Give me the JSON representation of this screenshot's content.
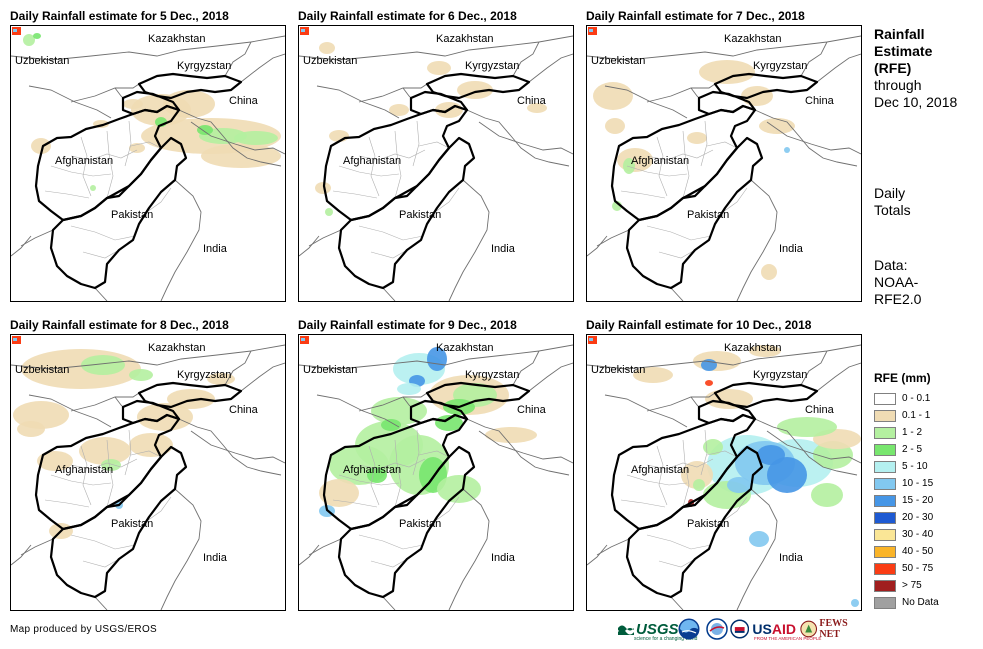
{
  "panels": [
    {
      "title": "Daily Rainfall estimate for 5 Dec., 2018"
    },
    {
      "title": "Daily Rainfall estimate for 6 Dec., 2018"
    },
    {
      "title": "Daily Rainfall estimate for 7 Dec., 2018"
    },
    {
      "title": "Daily Rainfall estimate for 8 Dec., 2018"
    },
    {
      "title": "Daily Rainfall estimate for 9 Dec., 2018"
    },
    {
      "title": "Daily Rainfall estimate for 10 Dec., 2018"
    }
  ],
  "map_labels": {
    "kazakhstan": "Kazakhstan",
    "uzbekistan": "Uzbekistan",
    "kyrgyzstan": "Kyrgyzstan",
    "china": "China",
    "afghanistan": "Afghanistan",
    "pakistan": "Pakistan",
    "india": "India"
  },
  "sidebar": {
    "title_bold": [
      "Rainfall",
      "Estimate",
      "(RFE)"
    ],
    "title_rest": [
      "through",
      "Dec 10, 2018"
    ],
    "daily": [
      "Daily",
      "Totals"
    ],
    "data": [
      "Data:",
      "NOAA-",
      "RFE2.0"
    ]
  },
  "legend": {
    "title": "RFE (mm)",
    "items": [
      {
        "label": "0 - 0.1",
        "color": "#ffffff"
      },
      {
        "label": "0.1 - 1",
        "color": "#f0dcb4"
      },
      {
        "label": "1 - 2",
        "color": "#b4f0a0"
      },
      {
        "label": "2 - 5",
        "color": "#78e66e"
      },
      {
        "label": "5 - 10",
        "color": "#b4f0f0"
      },
      {
        "label": "10 - 15",
        "color": "#82c8f0"
      },
      {
        "label": "15 - 20",
        "color": "#4696e6"
      },
      {
        "label": "20 - 30",
        "color": "#1e5ad2"
      },
      {
        "label": "30 - 40",
        "color": "#fae696"
      },
      {
        "label": "40 - 50",
        "color": "#fab428"
      },
      {
        "label": "50 - 75",
        "color": "#fa3c14"
      },
      {
        "label": "> 75",
        "color": "#a01e1e"
      },
      {
        "label": "No Data",
        "color": "#a0a0a0"
      }
    ]
  },
  "credit": "Map produced by USGS/EROS",
  "logos": {
    "usgs": "USGS",
    "usgs_tagline": "science for a changing world",
    "usaid_a": "US",
    "usaid_b": "AID",
    "usaid_tagline": "FROM THE AMERICAN PEOPLE",
    "fews": "FEWS NET"
  },
  "icons": [
    "noaa-icon",
    "nasa-icon",
    "fews-net-icon",
    "usgs-icon",
    "usaid-icon"
  ]
}
